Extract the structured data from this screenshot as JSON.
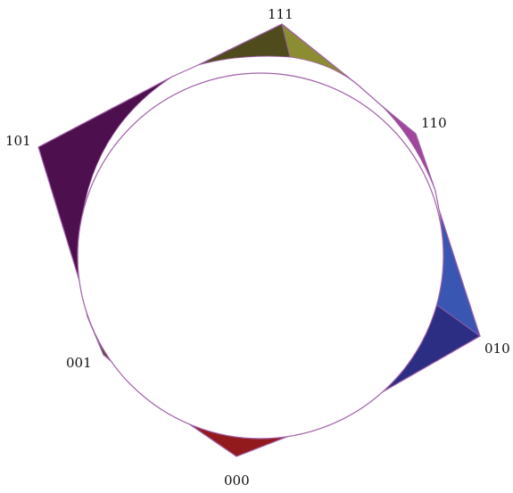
{
  "diagram": {
    "vertices": [
      {
        "label": "111",
        "colors": {
          "dark": "#4f4b1d",
          "light": "#8c8c32"
        }
      },
      {
        "label": "110",
        "colors": {
          "main": "#a0469c"
        }
      },
      {
        "label": "010",
        "colors": {
          "light": "#3956b3",
          "dark": "#2b2e83"
        }
      },
      {
        "label": "000",
        "colors": {
          "main": "#931a1c"
        }
      },
      {
        "label": "001",
        "colors": {
          "main": "#4f4b1d"
        }
      },
      {
        "label": "101",
        "colors": {
          "main": "#4d0f4d"
        }
      }
    ],
    "colors": {
      "edge": "#a060a8",
      "background": "#ffffff"
    }
  }
}
